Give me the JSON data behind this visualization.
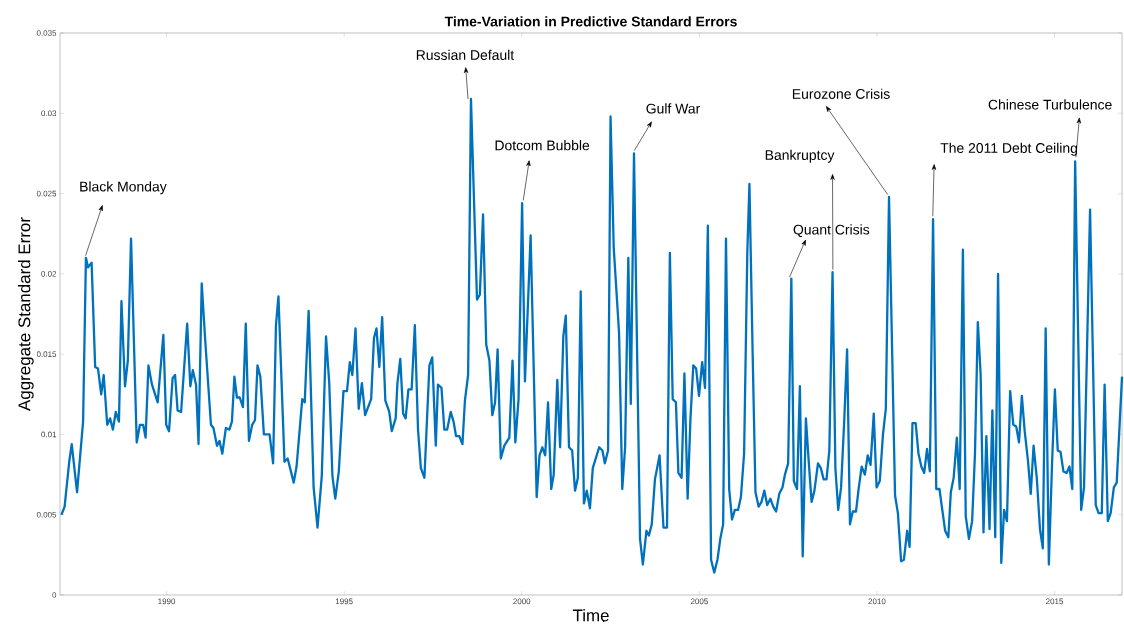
{
  "chart_data": {
    "type": "line",
    "title": "Time-Variation in Predictive Standard Errors",
    "xlabel": "Time",
    "ylabel": "Aggregate Standard Error",
    "color": "#0072bd",
    "xlim": [
      1987,
      2016.9
    ],
    "ylim": [
      0,
      0.035
    ],
    "xticks": [
      1990,
      1995,
      2000,
      2005,
      2010,
      2015
    ],
    "yticks": [
      0,
      0.005,
      0.01,
      0.015,
      0.02,
      0.025,
      0.03,
      0.035
    ],
    "annotations": [
      {
        "text": "Black Monday",
        "x": 1987.73,
        "y": 0.021
      },
      {
        "text": "Russian Default",
        "x": 1998.57,
        "y": 0.0309
      },
      {
        "text": "Dotcom Bubble",
        "x": 2000.01,
        "y": 0.0244
      },
      {
        "text": "Gulf War",
        "x": 2003.16,
        "y": 0.0275
      },
      {
        "text": "Quant Crisis",
        "x": 2007.59,
        "y": 0.0197
      },
      {
        "text": "Bankruptcy",
        "x": 2008.75,
        "y": 0.0201
      },
      {
        "text": "Eurozone Crisis",
        "x": 2010.34,
        "y": 0.0248
      },
      {
        "text": "The 2011 Debt Ceiling",
        "x": 2011.58,
        "y": 0.0234
      },
      {
        "text": "Chinese Turbulence",
        "x": 2015.58,
        "y": 0.027
      }
    ],
    "x": [
      1987.04,
      1987.13,
      1987.26,
      1987.33,
      1987.48,
      1987.65,
      1987.73,
      1987.79,
      1987.89,
      1987.99,
      1988.07,
      1988.16,
      1988.23,
      1988.33,
      1988.41,
      1988.49,
      1988.57,
      1988.66,
      1988.73,
      1988.83,
      1988.91,
      1989.0,
      1989.16,
      1989.25,
      1989.34,
      1989.41,
      1989.49,
      1989.59,
      1989.75,
      1989.91,
      1989.99,
      1990.07,
      1990.17,
      1990.24,
      1990.31,
      1990.41,
      1990.58,
      1990.67,
      1990.74,
      1990.83,
      1990.9,
      1990.99,
      1991.09,
      1991.25,
      1991.32,
      1991.42,
      1991.49,
      1991.57,
      1991.67,
      1991.77,
      1991.84,
      1991.91,
      1991.98,
      1992.06,
      1992.15,
      1992.23,
      1992.32,
      1992.41,
      1992.49,
      1992.56,
      1992.64,
      1992.74,
      1992.9,
      1993.0,
      1993.08,
      1993.15,
      1993.32,
      1993.41,
      1993.58,
      1993.66,
      1993.82,
      1993.89,
      1994.0,
      1994.14,
      1994.25,
      1994.37,
      1994.49,
      1994.58,
      1994.67,
      1994.75,
      1994.85,
      1994.98,
      1995.08,
      1995.16,
      1995.23,
      1995.32,
      1995.41,
      1995.5,
      1995.59,
      1995.76,
      1995.84,
      1995.91,
      1995.99,
      1996.07,
      1996.16,
      1996.27,
      1996.34,
      1996.45,
      1996.5,
      1996.58,
      1996.66,
      1996.73,
      1996.81,
      1996.9,
      1996.99,
      1997.08,
      1997.16,
      1997.26,
      1997.4,
      1997.48,
      1997.58,
      1997.64,
      1997.74,
      1997.82,
      1997.9,
      1998.0,
      1998.08,
      1998.15,
      1998.24,
      1998.33,
      1998.4,
      1998.49,
      1998.57,
      1998.74,
      1998.82,
      1998.91,
      1999.0,
      1999.09,
      1999.17,
      1999.25,
      1999.32,
      1999.41,
      1999.51,
      1999.65,
      1999.74,
      1999.82,
      1999.91,
      2000.01,
      2000.09,
      2000.25,
      2000.42,
      2000.5,
      2000.58,
      2000.66,
      2000.74,
      2000.83,
      2000.9,
      2001.0,
      2001.08,
      2001.17,
      2001.24,
      2001.33,
      2001.42,
      2001.5,
      2001.58,
      2001.66,
      2001.75,
      2001.83,
      2001.92,
      2002.0,
      2002.18,
      2002.27,
      2002.34,
      2002.43,
      2002.5,
      2002.59,
      2002.74,
      2002.83,
      2002.91,
      2003.0,
      2003.07,
      2003.16,
      2003.33,
      2003.41,
      2003.51,
      2003.58,
      2003.66,
      2003.75,
      2003.88,
      2003.99,
      2004.09,
      2004.17,
      2004.25,
      2004.34,
      2004.41,
      2004.5,
      2004.58,
      2004.67,
      2004.75,
      2004.83,
      2004.91,
      2004.99,
      2005.08,
      2005.16,
      2005.24,
      2005.33,
      2005.42,
      2005.51,
      2005.59,
      2005.67,
      2005.75,
      2005.84,
      2005.92,
      2006.0,
      2006.09,
      2006.17,
      2006.26,
      2006.35,
      2006.41,
      2006.5,
      2006.58,
      2006.67,
      2006.75,
      2006.83,
      2006.91,
      2007.0,
      2007.08,
      2007.16,
      2007.25,
      2007.34,
      2007.41,
      2007.5,
      2007.59,
      2007.66,
      2007.75,
      2007.83,
      2007.91,
      2008.0,
      2008.08,
      2008.16,
      2008.24,
      2008.34,
      2008.42,
      2008.5,
      2008.58,
      2008.66,
      2008.75,
      2008.83,
      2008.91,
      2008.99,
      2009.08,
      2009.16,
      2009.24,
      2009.32,
      2009.41,
      2009.49,
      2009.57,
      2009.66,
      2009.74,
      2009.82,
      2009.91,
      2009.99,
      2010.08,
      2010.17,
      2010.25,
      2010.34,
      2010.51,
      2010.59,
      2010.68,
      2010.76,
      2010.85,
      2010.92,
      2011.0,
      2011.09,
      2011.17,
      2011.25,
      2011.33,
      2011.41,
      2011.49,
      2011.58,
      2011.67,
      2011.76,
      2011.84,
      2011.92,
      2012.01,
      2012.08,
      2012.16,
      2012.25,
      2012.33,
      2012.42,
      2012.5,
      2012.59,
      2012.68,
      2012.76,
      2012.84,
      2012.92,
      2013.0,
      2013.08,
      2013.17,
      2013.25,
      2013.33,
      2013.41,
      2013.5,
      2013.58,
      2013.66,
      2013.75,
      2013.84,
      2013.92,
      2014.0,
      2014.08,
      2014.16,
      2014.25,
      2014.33,
      2014.41,
      2014.5,
      2014.59,
      2014.67,
      2014.75,
      2014.84,
      2014.93,
      2015.01,
      2015.09,
      2015.17,
      2015.25,
      2015.34,
      2015.42,
      2015.5,
      2015.58,
      2015.75,
      2015.83,
      2016.0,
      2016.16,
      2016.24,
      2016.33,
      2016.41,
      2016.5,
      2016.58,
      2016.67,
      2016.75,
      2016.9
    ],
    "values": [
      0.005,
      0.0055,
      0.0083,
      0.0094,
      0.0064,
      0.0108,
      0.021,
      0.0204,
      0.0207,
      0.0142,
      0.0141,
      0.0125,
      0.0137,
      0.0106,
      0.011,
      0.0103,
      0.0114,
      0.0108,
      0.0183,
      0.013,
      0.0146,
      0.0222,
      0.0095,
      0.0106,
      0.0106,
      0.0098,
      0.0143,
      0.0131,
      0.012,
      0.0162,
      0.0106,
      0.0102,
      0.0135,
      0.0137,
      0.0115,
      0.0114,
      0.0169,
      0.013,
      0.014,
      0.0131,
      0.0094,
      0.0194,
      0.0158,
      0.0106,
      0.0104,
      0.0093,
      0.0096,
      0.0088,
      0.0104,
      0.0103,
      0.0108,
      0.0136,
      0.0123,
      0.0123,
      0.0117,
      0.0169,
      0.0096,
      0.0106,
      0.0109,
      0.0143,
      0.0136,
      0.01,
      0.01,
      0.0082,
      0.0168,
      0.0186,
      0.0083,
      0.0085,
      0.007,
      0.008,
      0.0122,
      0.012,
      0.0177,
      0.0067,
      0.0042,
      0.0074,
      0.0161,
      0.0132,
      0.0074,
      0.006,
      0.0077,
      0.0127,
      0.0127,
      0.0145,
      0.0137,
      0.0166,
      0.0116,
      0.0132,
      0.0112,
      0.0122,
      0.016,
      0.0166,
      0.0142,
      0.0173,
      0.0121,
      0.0114,
      0.0102,
      0.011,
      0.0132,
      0.0147,
      0.0113,
      0.011,
      0.0128,
      0.0128,
      0.0168,
      0.0103,
      0.0079,
      0.0073,
      0.0143,
      0.0148,
      0.0093,
      0.0131,
      0.0129,
      0.0103,
      0.0103,
      0.0114,
      0.0108,
      0.0099,
      0.0099,
      0.0094,
      0.0121,
      0.0137,
      0.0309,
      0.0184,
      0.0187,
      0.0237,
      0.0156,
      0.0146,
      0.0112,
      0.012,
      0.0153,
      0.0085,
      0.0093,
      0.0098,
      0.0146,
      0.0095,
      0.0122,
      0.0244,
      0.0133,
      0.0224,
      0.0061,
      0.0087,
      0.0092,
      0.0087,
      0.012,
      0.0066,
      0.0075,
      0.0134,
      0.0092,
      0.0161,
      0.0174,
      0.0092,
      0.009,
      0.0065,
      0.0073,
      0.0189,
      0.0057,
      0.0065,
      0.0054,
      0.0079,
      0.0092,
      0.009,
      0.0082,
      0.009,
      0.0298,
      0.0216,
      0.0163,
      0.0066,
      0.0092,
      0.021,
      0.0119,
      0.0275,
      0.0035,
      0.0019,
      0.004,
      0.0037,
      0.0044,
      0.0072,
      0.0087,
      0.0042,
      0.0042,
      0.0213,
      0.0122,
      0.012,
      0.0076,
      0.0073,
      0.0138,
      0.006,
      0.011,
      0.0143,
      0.0141,
      0.0124,
      0.0145,
      0.0129,
      0.023,
      0.0022,
      0.0014,
      0.0022,
      0.0035,
      0.0044,
      0.0222,
      0.0066,
      0.0047,
      0.0053,
      0.0053,
      0.0061,
      0.0088,
      0.0213,
      0.0256,
      0.0151,
      0.0064,
      0.0055,
      0.0058,
      0.0065,
      0.0056,
      0.006,
      0.0055,
      0.0052,
      0.0063,
      0.0067,
      0.0075,
      0.0082,
      0.0197,
      0.0071,
      0.0066,
      0.013,
      0.0024,
      0.011,
      0.0083,
      0.0058,
      0.0065,
      0.0082,
      0.0079,
      0.0072,
      0.0072,
      0.009,
      0.0201,
      0.0079,
      0.0053,
      0.0067,
      0.0109,
      0.0153,
      0.0044,
      0.0052,
      0.0052,
      0.0067,
      0.008,
      0.0075,
      0.0087,
      0.0081,
      0.0113,
      0.0067,
      0.0071,
      0.01,
      0.0116,
      0.0248,
      0.0062,
      0.0051,
      0.0021,
      0.0022,
      0.004,
      0.003,
      0.0107,
      0.0107,
      0.0088,
      0.008,
      0.0076,
      0.0091,
      0.0077,
      0.0234,
      0.0066,
      0.0066,
      0.0053,
      0.004,
      0.0036,
      0.0064,
      0.0073,
      0.0098,
      0.0066,
      0.0215,
      0.0049,
      0.0035,
      0.0046,
      0.0088,
      0.017,
      0.0137,
      0.0039,
      0.0099,
      0.0041,
      0.0115,
      0.0036,
      0.02,
      0.002,
      0.0053,
      0.0046,
      0.0127,
      0.0106,
      0.0105,
      0.0095,
      0.0124,
      0.0102,
      0.0084,
      0.0063,
      0.0093,
      0.0073,
      0.0041,
      0.0029,
      0.0166,
      0.0019,
      0.0082,
      0.0128,
      0.009,
      0.0089,
      0.0077,
      0.0076,
      0.008,
      0.0066,
      0.027,
      0.0053,
      0.0067,
      0.024,
      0.0056,
      0.0051,
      0.0051,
      0.0131,
      0.0046,
      0.0051,
      0.0067,
      0.007,
      0.0136
    ]
  }
}
